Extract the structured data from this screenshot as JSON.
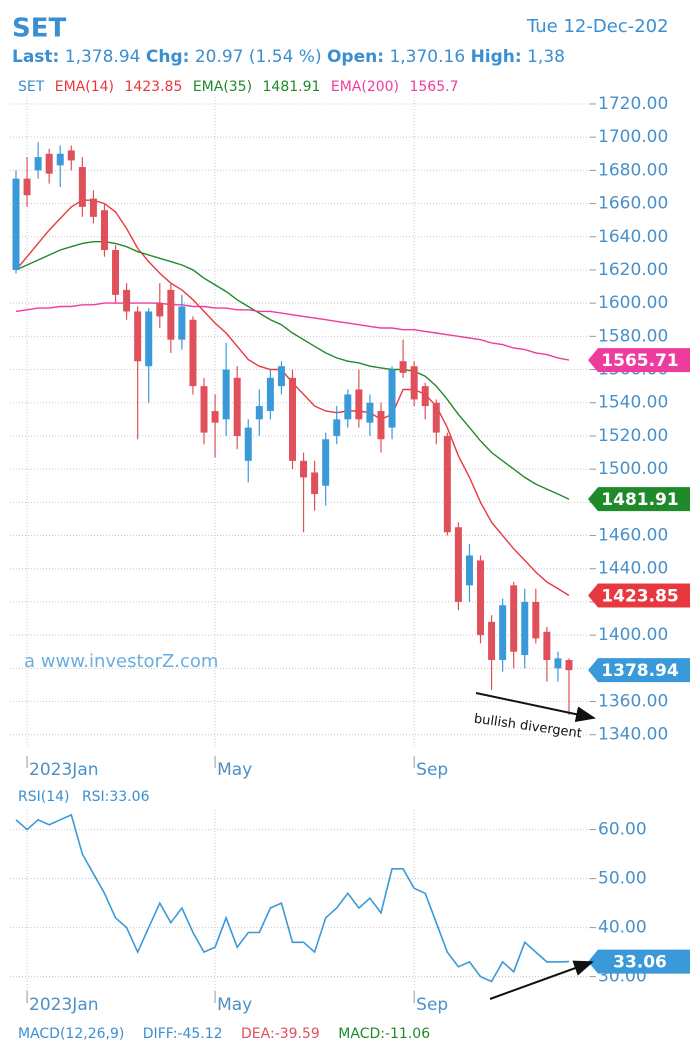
{
  "header": {
    "symbol": "SET",
    "date": "Tue 12-Dec-202",
    "quote": [
      {
        "label": "Last:",
        "value": "1,378.94"
      },
      {
        "label": "Chg:",
        "value": "20.97 (1.54 %)"
      },
      {
        "label": "Open:",
        "value": "1,370.16"
      },
      {
        "label": "High:",
        "value": "1,38"
      }
    ],
    "macd": [
      "MACD(12,26,9)",
      "DIFF:-45.12",
      "DEA:-39.59",
      "MACD:-11.06"
    ]
  },
  "chart_data": [
    {
      "type": "candlestick",
      "name": "SET",
      "categories": [
        null,
        "2023Jan",
        null,
        null,
        null,
        null,
        null,
        null,
        null,
        null,
        null,
        null,
        null,
        null,
        null,
        null,
        null,
        null,
        "May",
        null,
        null,
        null,
        null,
        null,
        null,
        null,
        null,
        null,
        null,
        null,
        null,
        null,
        null,
        null,
        null,
        null,
        "Sep",
        null,
        null,
        null,
        null,
        null,
        null,
        null,
        null,
        null,
        null,
        null,
        null,
        null,
        null
      ],
      "open": [
        1620,
        1675,
        1680,
        1690,
        1683,
        1692,
        1682,
        1663,
        1656,
        1632,
        1608,
        1595,
        1562,
        1600,
        1608,
        1578,
        1590,
        1550,
        1535,
        1530,
        1555,
        1505,
        1530,
        1535,
        1550,
        1555,
        1505,
        1498,
        1490,
        1520,
        1530,
        1548,
        1528,
        1535,
        1525,
        1565,
        1562,
        1550,
        1540,
        1520,
        1465,
        1430,
        1445,
        1408,
        1385,
        1430,
        1388,
        1420,
        1402,
        1380,
        1385
      ],
      "high": [
        1680,
        1688,
        1697,
        1693,
        1695,
        1695,
        1688,
        1668,
        1660,
        1635,
        1612,
        1598,
        1597,
        1612,
        1612,
        1605,
        1592,
        1555,
        1545,
        1576,
        1562,
        1530,
        1548,
        1560,
        1565,
        1560,
        1510,
        1505,
        1522,
        1538,
        1548,
        1560,
        1545,
        1540,
        1562,
        1578,
        1565,
        1552,
        1542,
        1522,
        1468,
        1455,
        1448,
        1412,
        1422,
        1432,
        1428,
        1428,
        1405,
        1390,
        1386
      ],
      "low": [
        1618,
        1658,
        1675,
        1672,
        1670,
        1680,
        1652,
        1648,
        1628,
        1600,
        1590,
        1518,
        1540,
        1585,
        1570,
        1572,
        1545,
        1515,
        1507,
        1520,
        1512,
        1492,
        1520,
        1530,
        1545,
        1500,
        1462,
        1475,
        1478,
        1515,
        1525,
        1525,
        1520,
        1510,
        1518,
        1555,
        1538,
        1530,
        1515,
        1460,
        1415,
        1420,
        1395,
        1367,
        1378,
        1380,
        1380,
        1395,
        1372,
        1372,
        1352
      ],
      "close": [
        1675,
        1665,
        1688,
        1678,
        1690,
        1686,
        1658,
        1652,
        1632,
        1605,
        1595,
        1565,
        1595,
        1592,
        1578,
        1598,
        1550,
        1522,
        1528,
        1560,
        1520,
        1525,
        1538,
        1555,
        1562,
        1505,
        1495,
        1485,
        1518,
        1530,
        1545,
        1530,
        1540,
        1518,
        1560,
        1558,
        1542,
        1538,
        1522,
        1462,
        1420,
        1448,
        1400,
        1385,
        1418,
        1390,
        1420,
        1398,
        1385,
        1386,
        1378.94
      ],
      "up_color": "#3a9ad9",
      "down_color": "#e0505a",
      "series": [
        {
          "name": "EMA(14)",
          "legend_value": "1423.85",
          "color": "#e8383f",
          "values": [
            1620,
            1628,
            1636,
            1644,
            1651,
            1658,
            1662,
            1662,
            1660,
            1655,
            1645,
            1633,
            1625,
            1618,
            1612,
            1608,
            1602,
            1595,
            1588,
            1582,
            1574,
            1566,
            1562,
            1560,
            1560,
            1552,
            1545,
            1538,
            1535,
            1534,
            1535,
            1535,
            1534,
            1530,
            1533,
            1548,
            1548,
            1545,
            1538,
            1525,
            1508,
            1495,
            1480,
            1468,
            1460,
            1452,
            1445,
            1438,
            1432,
            1428,
            1423.85
          ]
        },
        {
          "name": "EMA(35)",
          "legend_value": "1481.91",
          "color": "#1f8a2a",
          "values": [
            1620,
            1623,
            1626,
            1629,
            1632,
            1634,
            1636,
            1637,
            1637,
            1636,
            1634,
            1631,
            1629,
            1627,
            1625,
            1623,
            1620,
            1615,
            1611,
            1607,
            1602,
            1598,
            1594,
            1590,
            1587,
            1582,
            1578,
            1574,
            1570,
            1567,
            1565,
            1564,
            1562,
            1561,
            1560,
            1560,
            1559,
            1556,
            1550,
            1542,
            1533,
            1525,
            1517,
            1510,
            1505,
            1500,
            1495,
            1491,
            1488,
            1485,
            1481.91
          ]
        },
        {
          "name": "EMA(200)",
          "legend_value": "1565.7",
          "color": "#ee3c9c",
          "values": [
            1595,
            1596,
            1597,
            1597,
            1598,
            1598,
            1599,
            1599,
            1600,
            1600,
            1600,
            1600,
            1600,
            1600,
            1599,
            1599,
            1598,
            1598,
            1597,
            1597,
            1596,
            1596,
            1595,
            1595,
            1594,
            1593,
            1592,
            1591,
            1590,
            1589,
            1588,
            1587,
            1586,
            1585,
            1585,
            1584,
            1584,
            1583,
            1582,
            1581,
            1580,
            1579,
            1578,
            1576,
            1575,
            1573,
            1572,
            1570,
            1569,
            1567,
            1565.71
          ]
        }
      ],
      "ylim": [
        1332,
        1726
      ],
      "yticks": [
        {
          "value": 1340,
          "label": "1340.00"
        },
        {
          "value": 1360,
          "label": "1360.00"
        },
        {
          "value": 1380,
          "label": "1380.00"
        },
        {
          "value": 1400,
          "label": "1400.00"
        },
        {
          "value": 1420,
          "label": "1420.00"
        },
        {
          "value": 1440,
          "label": "1440.00"
        },
        {
          "value": 1460,
          "label": "1460.00"
        },
        {
          "value": 1480,
          "label": "1480.00"
        },
        {
          "value": 1500,
          "label": "1500.00"
        },
        {
          "value": 1520,
          "label": "1520.00"
        },
        {
          "value": 1540,
          "label": "1540.00"
        },
        {
          "value": 1560,
          "label": "1560.00"
        },
        {
          "value": 1580,
          "label": "1580.00"
        },
        {
          "value": 1600,
          "label": "1600.00"
        },
        {
          "value": 1620,
          "label": "1620.00"
        },
        {
          "value": 1640,
          "label": "1640.00"
        },
        {
          "value": 1660,
          "label": "1660.00"
        },
        {
          "value": 1680,
          "label": "1680.00"
        },
        {
          "value": 1700,
          "label": "1700.00"
        },
        {
          "value": 1720,
          "label": "1720.00"
        }
      ],
      "grid": true,
      "annotations": [
        "a www.investorZ.com",
        "bullish divergent"
      ]
    },
    {
      "type": "line",
      "title": "RSI(14)",
      "subtitle": "RSI:33.06",
      "categories": [
        null,
        "2023Jan",
        null,
        null,
        null,
        null,
        null,
        null,
        null,
        null,
        null,
        null,
        null,
        null,
        null,
        null,
        null,
        null,
        "May",
        null,
        null,
        null,
        null,
        null,
        null,
        null,
        null,
        null,
        null,
        null,
        null,
        null,
        null,
        null,
        null,
        null,
        "Sep",
        null,
        null,
        null,
        null,
        null,
        null,
        null,
        null,
        null,
        null,
        null,
        null,
        null,
        null
      ],
      "series": [
        {
          "color": "#3a9ad9",
          "values": [
            62,
            60,
            62,
            61,
            62,
            63,
            55,
            51,
            47,
            42,
            40,
            35,
            40,
            45,
            41,
            44,
            39,
            35,
            36,
            42,
            36,
            39,
            39,
            44,
            45,
            37,
            37,
            35,
            42,
            44,
            47,
            44,
            46,
            43,
            52,
            52,
            48,
            47,
            41,
            35,
            32,
            33,
            30,
            29,
            33,
            31,
            37,
            35,
            33,
            33,
            33.06
          ]
        }
      ],
      "ylim": [
        27,
        64
      ],
      "yticks": [
        {
          "value": 30,
          "label": "30.00"
        },
        {
          "value": 40,
          "label": "40.00"
        },
        {
          "value": 50,
          "label": "50.00"
        },
        {
          "value": 60,
          "label": "60.00"
        }
      ],
      "grid": true
    }
  ]
}
